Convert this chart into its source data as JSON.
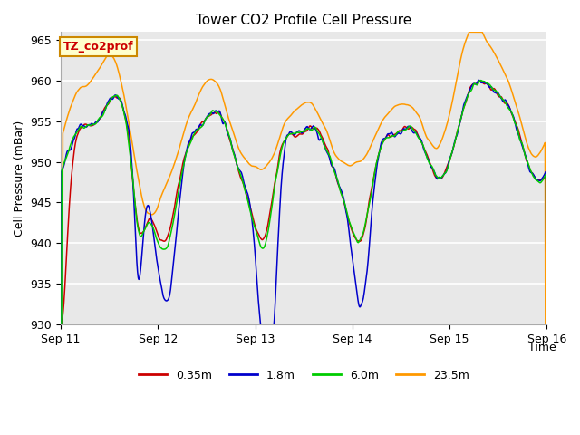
{
  "title": "Tower CO2 Profile Cell Pressure",
  "xlabel": "Time",
  "ylabel": "Cell Pressure (mBar)",
  "ylim": [
    930,
    966
  ],
  "yticks": [
    930,
    935,
    940,
    945,
    950,
    955,
    960,
    965
  ],
  "annotation_text": "TZ_co2prof",
  "annotation_color": "#cc0000",
  "annotation_bg": "#ffffcc",
  "annotation_border": "#cc8800",
  "colors": {
    "0.35m": "#cc0000",
    "1.8m": "#0000cc",
    "6.0m": "#00cc00",
    "23.5m": "#ff9900"
  },
  "legend_labels": [
    "0.35m",
    "1.8m",
    "6.0m",
    "23.5m"
  ],
  "xtick_labels": [
    "Sep 11",
    "Sep 12",
    "Sep 13",
    "Sep 14",
    "Sep 15",
    "Sep 16"
  ],
  "plot_bg": "#e8e8e8",
  "grid_color": "#ffffff",
  "n_points": 1440
}
